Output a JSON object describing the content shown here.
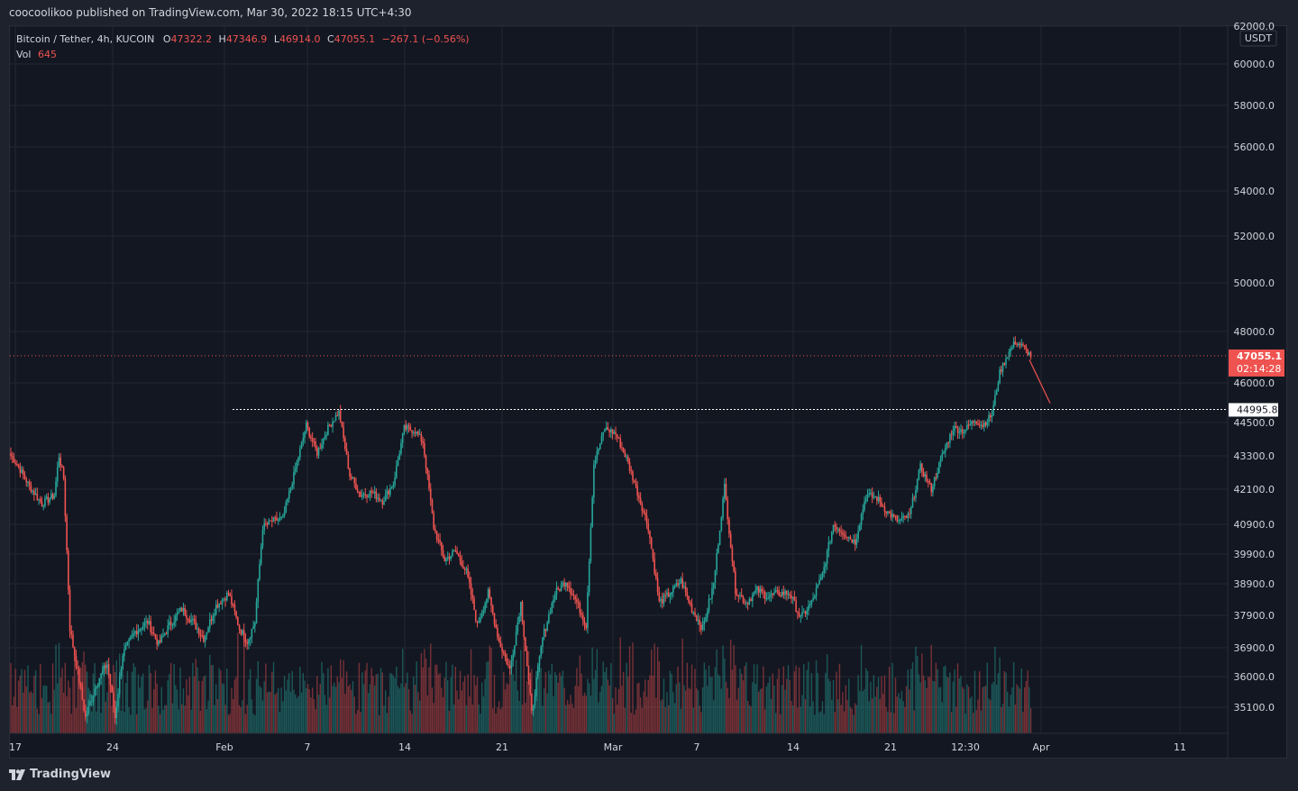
{
  "header": {
    "publisher_text": "coocoolikoo published on TradingView.com, Mar 30, 2022 18:15 UTC+4:30"
  },
  "legend": {
    "symbol": "Bitcoin / Tether, 4h, KUCOIN",
    "o_label": "O",
    "o_value": "47322.2",
    "h_label": "H",
    "h_value": "47346.9",
    "l_label": "L",
    "l_value": "46914.0",
    "c_label": "C",
    "c_value": "47055.1",
    "change": "−267.1 (−0.56%)",
    "vol_label": "Vol",
    "vol_value": "645"
  },
  "price_axis": {
    "currency": "USDT",
    "current_price": "47055.1",
    "countdown": "02:14:28",
    "level_label": "44995.8"
  },
  "footer": {
    "brand": "TradingView"
  },
  "colors": {
    "up": "#26a69a",
    "down": "#ef5350",
    "background": "#131722",
    "grid": "#232733",
    "axis_text": "#d1d4dc"
  },
  "chart_data": {
    "type": "candlestick",
    "title": "Bitcoin / Tether, 4h, KUCOIN",
    "ylabel": "USDT",
    "y_ticks": [
      "62000.0",
      "60000.0",
      "58000.0",
      "56000.0",
      "54000.0",
      "52000.0",
      "50000.0",
      "48000.0",
      "46000.0",
      "44500.0",
      "43300.0",
      "42100.0",
      "40900.0",
      "39900.0",
      "38900.0",
      "37900.0",
      "36900.0",
      "36000.0",
      "35100.0"
    ],
    "x_ticks": [
      "17",
      "24",
      "Feb",
      "7",
      "14",
      "21",
      "Mar",
      "7",
      "14",
      "21",
      "12:30",
      "Apr",
      "11"
    ],
    "price_anchors": [
      [
        0,
        43300
      ],
      [
        4,
        43000
      ],
      [
        12,
        42200
      ],
      [
        20,
        41600
      ],
      [
        28,
        41900
      ],
      [
        31,
        43300
      ],
      [
        34,
        42500
      ],
      [
        38,
        37500
      ],
      [
        45,
        35600
      ],
      [
        48,
        34800
      ],
      [
        55,
        35800
      ],
      [
        62,
        36400
      ],
      [
        67,
        34800
      ],
      [
        72,
        36700
      ],
      [
        80,
        37400
      ],
      [
        88,
        37700
      ],
      [
        95,
        37000
      ],
      [
        102,
        37600
      ],
      [
        110,
        38100
      ],
      [
        117,
        37700
      ],
      [
        124,
        37200
      ],
      [
        132,
        38200
      ],
      [
        140,
        38600
      ],
      [
        147,
        37500
      ],
      [
        152,
        37100
      ],
      [
        157,
        37700
      ],
      [
        162,
        40800
      ],
      [
        168,
        41000
      ],
      [
        175,
        41100
      ],
      [
        182,
        42600
      ],
      [
        190,
        44400
      ],
      [
        197,
        43400
      ],
      [
        204,
        44300
      ],
      [
        211,
        44900
      ],
      [
        218,
        42600
      ],
      [
        225,
        41900
      ],
      [
        232,
        42000
      ],
      [
        239,
        41700
      ],
      [
        246,
        42300
      ],
      [
        253,
        44300
      ],
      [
        260,
        44200
      ],
      [
        265,
        43800
      ],
      [
        272,
        40800
      ],
      [
        279,
        39700
      ],
      [
        286,
        40000
      ],
      [
        293,
        39300
      ],
      [
        300,
        37600
      ],
      [
        307,
        38600
      ],
      [
        314,
        37100
      ],
      [
        321,
        36200
      ],
      [
        328,
        38300
      ],
      [
        335,
        34900
      ],
      [
        342,
        37200
      ],
      [
        350,
        38600
      ],
      [
        357,
        39000
      ],
      [
        364,
        38300
      ],
      [
        370,
        37600
      ],
      [
        375,
        43000
      ],
      [
        382,
        44300
      ],
      [
        389,
        44100
      ],
      [
        396,
        43200
      ],
      [
        403,
        42000
      ],
      [
        410,
        40800
      ],
      [
        417,
        38300
      ],
      [
        424,
        38600
      ],
      [
        431,
        39000
      ],
      [
        438,
        38100
      ],
      [
        445,
        37500
      ],
      [
        452,
        38900
      ],
      [
        459,
        42200
      ],
      [
        466,
        38700
      ],
      [
        473,
        38300
      ],
      [
        480,
        38700
      ],
      [
        487,
        38500
      ],
      [
        494,
        38600
      ],
      [
        501,
        38600
      ],
      [
        508,
        37800
      ],
      [
        515,
        38300
      ],
      [
        522,
        39200
      ],
      [
        529,
        40900
      ],
      [
        536,
        40600
      ],
      [
        543,
        40300
      ],
      [
        550,
        41900
      ],
      [
        557,
        41800
      ],
      [
        564,
        41300
      ],
      [
        571,
        41000
      ],
      [
        578,
        41200
      ],
      [
        585,
        42900
      ],
      [
        592,
        42100
      ],
      [
        599,
        43300
      ],
      [
        606,
        44300
      ],
      [
        613,
        44200
      ],
      [
        620,
        44600
      ],
      [
        625,
        44400
      ],
      [
        631,
        44800
      ],
      [
        636,
        46400
      ],
      [
        641,
        47100
      ],
      [
        646,
        47600
      ],
      [
        651,
        47400
      ],
      [
        656,
        47060
      ]
    ],
    "volume_profile": "bars along the bottom, up/down colored",
    "annotations": [
      {
        "type": "horizontal_line",
        "value": 44995.8,
        "style": "dotted",
        "color": "white"
      },
      {
        "type": "horizontal_line",
        "value": 47055.1,
        "style": "dotted",
        "color": "red"
      },
      {
        "type": "arrow",
        "from_price": 46900,
        "to_price": 45500,
        "direction": "down",
        "color": "red"
      }
    ]
  }
}
